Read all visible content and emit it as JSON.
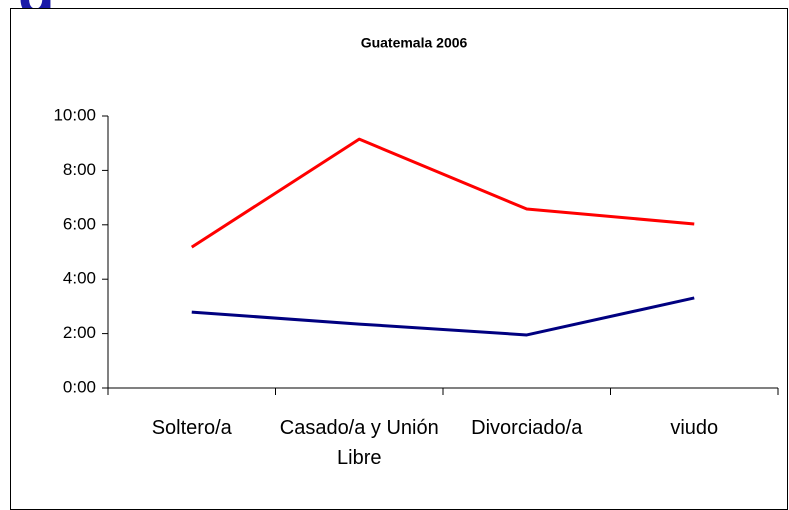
{
  "heading_fragment": "g",
  "chart_data": {
    "type": "line",
    "title": "Guatemala 2006",
    "categories": [
      "Soltero/a",
      "Casado/a y Unión Libre",
      "Divorciado/a",
      "viudo"
    ],
    "series": [
      {
        "color": "#ff0000",
        "values": [
          5.18,
          9.15,
          6.58,
          6.03
        ]
      },
      {
        "color": "#000080",
        "values": [
          2.79,
          2.35,
          1.95,
          3.31
        ]
      }
    ],
    "ylim": [
      0,
      10
    ],
    "yticks": [
      {
        "value": 0,
        "label": "0:00"
      },
      {
        "value": 2,
        "label": "2:00"
      },
      {
        "value": 4,
        "label": "4:00"
      },
      {
        "value": 6,
        "label": "6:00"
      },
      {
        "value": 8,
        "label": "8:00"
      },
      {
        "value": 10,
        "label": "10:00"
      }
    ],
    "grid": false
  }
}
